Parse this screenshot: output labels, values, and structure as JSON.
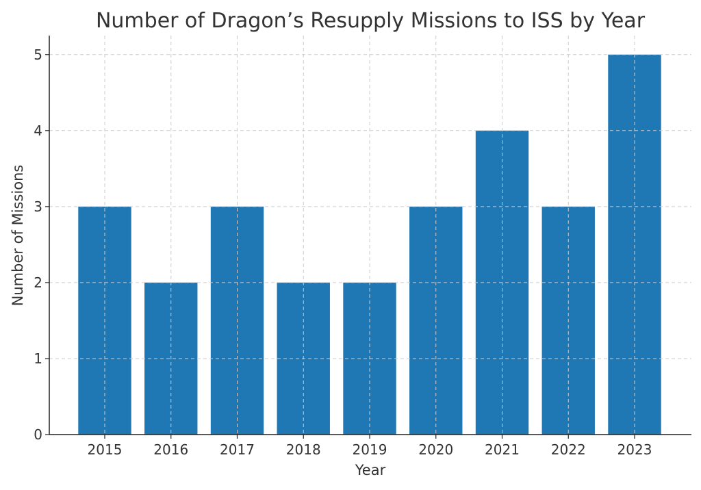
{
  "chart_data": {
    "type": "bar",
    "title": "Number of Dragon’s Resupply Missions to ISS by Year",
    "xlabel": "Year",
    "ylabel": "Number of Missions",
    "categories": [
      "2015",
      "2016",
      "2017",
      "2018",
      "2019",
      "2020",
      "2021",
      "2022",
      "2023"
    ],
    "values": [
      3,
      2,
      3,
      2,
      2,
      3,
      4,
      3,
      5
    ],
    "ylim": [
      0,
      5.25
    ],
    "yticks": [
      0,
      1,
      2,
      3,
      4,
      5
    ],
    "grid": true,
    "bar_color": "#1f77b4"
  }
}
